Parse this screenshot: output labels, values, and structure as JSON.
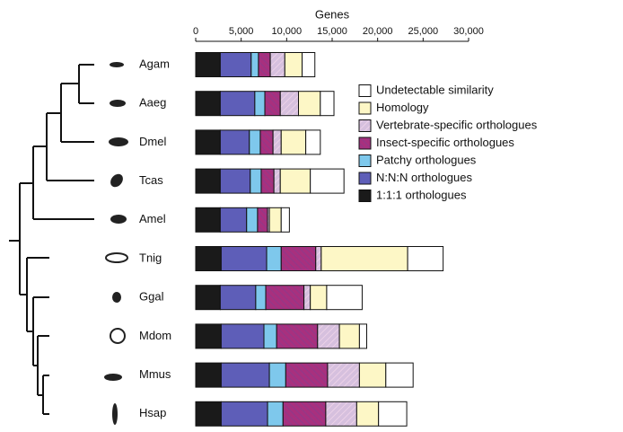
{
  "chart_data": {
    "type": "stacked-bar-horizontal",
    "x_label": "Genes",
    "xlim": [
      0,
      30000
    ],
    "xticks": [
      0,
      {
        "value": 5000,
        "label": "5,000"
      },
      {
        "value": 10000,
        "label": "10,000"
      },
      {
        "value": 15000,
        "label": "15,000"
      },
      {
        "value": 20000,
        "label": "20,000"
      },
      {
        "value": 25000,
        "label": "25,000"
      },
      {
        "value": 30000,
        "label": "30,000"
      }
    ],
    "categories": [
      "Agam",
      "Aaeg",
      "Dmel",
      "Tcas",
      "Amel",
      "Tnig",
      "Ggal",
      "Mdom",
      "Mmus",
      "Hsap"
    ],
    "series": [
      {
        "name": "1:1:1 orthologues",
        "color": "#1a1a1a",
        "hatch": false,
        "values": [
          2700,
          2700,
          2700,
          2700,
          2700,
          2800,
          2700,
          2800,
          2800,
          2800
        ]
      },
      {
        "name": "N:N:N orthologues",
        "color": "#5e5eb8",
        "hatch": false,
        "values": [
          3400,
          3800,
          3200,
          3300,
          2900,
          5000,
          3900,
          4700,
          5300,
          5100
        ]
      },
      {
        "name": "Patchy orthologues",
        "color": "#7ec8ec",
        "hatch": false,
        "values": [
          800,
          1100,
          1200,
          1200,
          1200,
          1600,
          1100,
          1400,
          1800,
          1700
        ]
      },
      {
        "name": "Insect-specific orthologues",
        "color": "#a8307e",
        "hatch": true,
        "values": [
          1300,
          1700,
          1400,
          1400,
          1100,
          3800,
          4200,
          4500,
          4600,
          4700
        ]
      },
      {
        "name": "Vertebrate-specific orthologues",
        "color": "#d6c0de",
        "hatch": true,
        "values": [
          1600,
          2000,
          900,
          700,
          200,
          600,
          700,
          2400,
          3500,
          3400
        ]
      },
      {
        "name": "Homology",
        "color": "#fdf7c6",
        "hatch": false,
        "values": [
          1900,
          2400,
          2700,
          3300,
          1300,
          9500,
          1800,
          2200,
          2900,
          2400
        ]
      },
      {
        "name": "Undetectable similarity",
        "color": "#ffffff",
        "hatch": false,
        "values": [
          1400,
          1500,
          1600,
          3700,
          900,
          3900,
          3900,
          800,
          3000,
          3100
        ]
      }
    ]
  }
}
